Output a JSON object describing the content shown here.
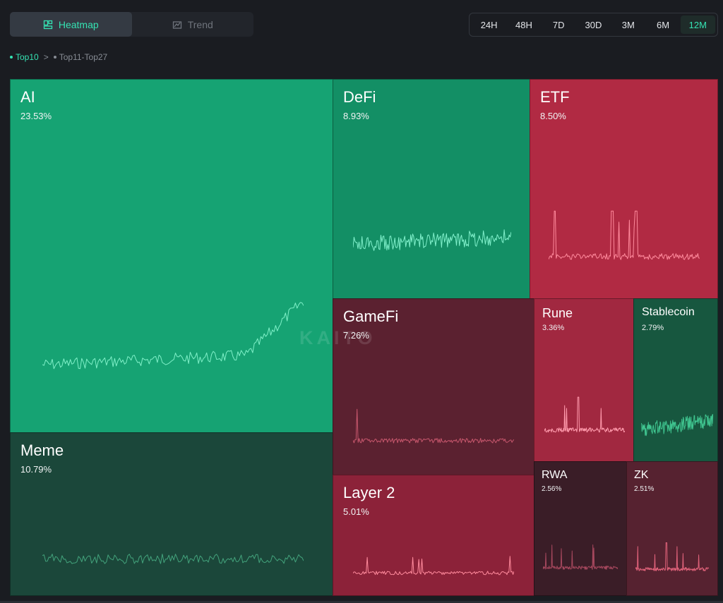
{
  "view_tabs": [
    {
      "label": "Heatmap",
      "icon": "heatmap-icon",
      "active": true
    },
    {
      "label": "Trend",
      "icon": "trend-icon",
      "active": false
    }
  ],
  "time_ranges": [
    {
      "label": "24H",
      "active": false
    },
    {
      "label": "48H",
      "active": false
    },
    {
      "label": "7D",
      "active": false
    },
    {
      "label": "30D",
      "active": false
    },
    {
      "label": "3M",
      "active": false
    },
    {
      "label": "6M",
      "active": false
    },
    {
      "label": "12M",
      "active": true
    }
  ],
  "breadcrumb": {
    "active": "Top10",
    "separator": ">",
    "inactive": "Top11-Top27"
  },
  "watermark": "KAITO",
  "tiles": [
    {
      "id": "ai",
      "name": "AI",
      "pct": "23.53%",
      "color": "#16a373",
      "line": "#7ff0c8",
      "trend": "up"
    },
    {
      "id": "defi",
      "name": "DeFi",
      "pct": "8.93%",
      "color": "#138f65",
      "line": "#80f0cb",
      "trend": "flat-up"
    },
    {
      "id": "etf",
      "name": "ETF",
      "pct": "8.50%",
      "color": "#b12a43",
      "line": "#ff8a9c",
      "trend": "spiky"
    },
    {
      "id": "meme",
      "name": "Meme",
      "pct": "10.79%",
      "color": "#1b473a",
      "line": "#43a37c",
      "trend": "flat"
    },
    {
      "id": "gamefi",
      "name": "GameFi",
      "pct": "7.26%",
      "color": "#5b2130",
      "line": "#c7576d",
      "trend": "flat-spike"
    },
    {
      "id": "layer2",
      "name": "Layer 2",
      "pct": "5.01%",
      "color": "#8c2239",
      "line": "#ff8a9c",
      "trend": "flat-spike"
    },
    {
      "id": "rune",
      "name": "Rune",
      "pct": "3.36%",
      "color": "#a12840",
      "line": "#ff9aac",
      "trend": "spike"
    },
    {
      "id": "stablecoin",
      "name": "Stablecoin",
      "pct": "2.79%",
      "color": "#17573f",
      "line": "#3fc48f",
      "trend": "noisy-up"
    },
    {
      "id": "rwa",
      "name": "RWA",
      "pct": "2.56%",
      "color": "#3a1d27",
      "line": "#a5475d",
      "trend": "flat-spike"
    },
    {
      "id": "zk",
      "name": "ZK",
      "pct": "2.51%",
      "color": "#562230",
      "line": "#e0627a",
      "trend": "spike"
    }
  ]
}
